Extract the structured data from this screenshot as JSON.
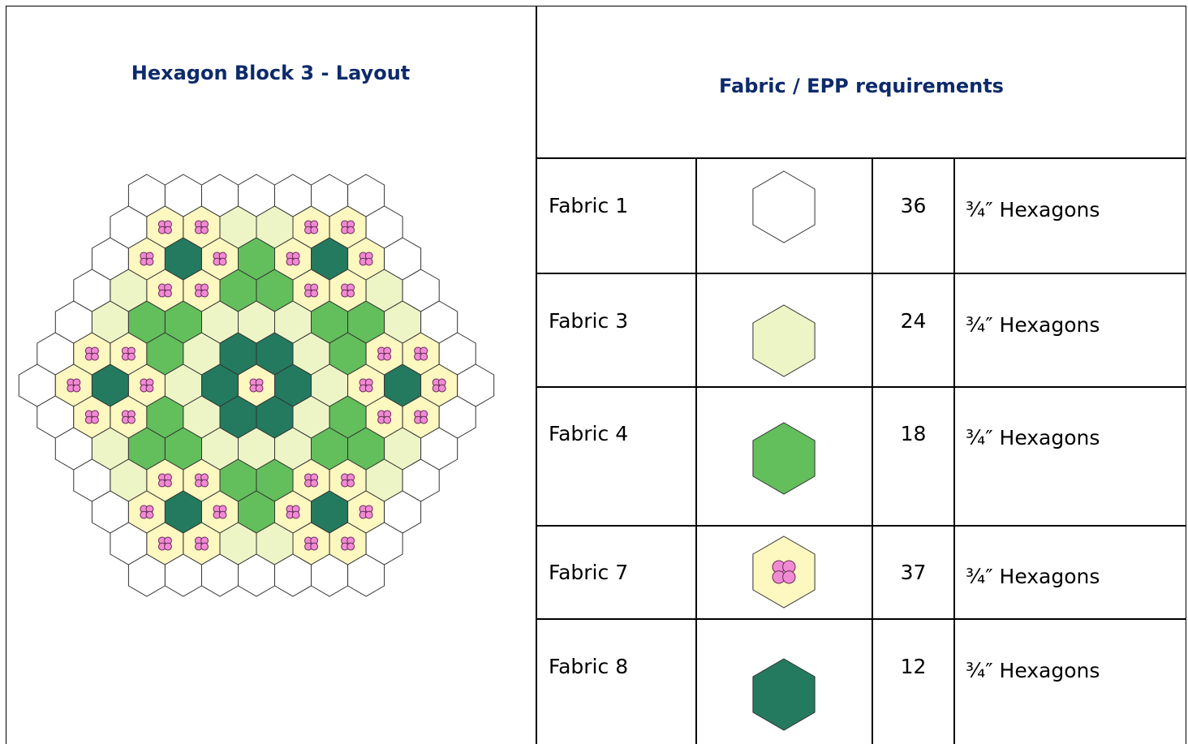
{
  "layout_panel": {
    "title": "Hexagon Block 3 - Layout"
  },
  "requirements": {
    "title": "Fabric  / EPP requirements",
    "rows": [
      {
        "fabric": "Fabric 1",
        "count": 36,
        "unit": "¾″ Hexagons"
      },
      {
        "fabric": "Fabric 3",
        "count": 24,
        "unit": "¾″ Hexagons"
      },
      {
        "fabric": "Fabric 4",
        "count": 18,
        "unit": "¾″ Hexagons"
      },
      {
        "fabric": "Fabric 7",
        "count": 37,
        "unit": "¾″ Hexagons"
      },
      {
        "fabric": "Fabric 8",
        "count": 12,
        "unit": "¾″ Hexagons"
      }
    ]
  }
}
